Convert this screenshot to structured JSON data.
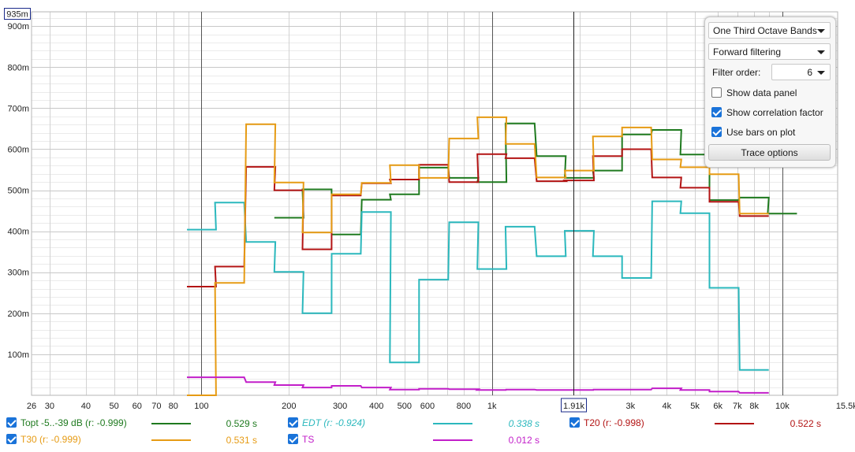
{
  "chart_data": {
    "type": "line",
    "step": true,
    "x_scale": "log",
    "xlim": [
      26,
      15500
    ],
    "ylim": [
      0,
      935
    ],
    "x_unit": "Hz",
    "y_tick_labels": [
      "900m",
      "800m",
      "700m",
      "600m",
      "500m",
      "400m",
      "300m",
      "200m",
      "100m"
    ],
    "y_ticks": [
      900,
      800,
      700,
      600,
      500,
      400,
      300,
      200,
      100
    ],
    "x_tick_labels": [
      "26",
      "30",
      "40",
      "50",
      "60",
      "70",
      "80",
      "100",
      "200",
      "300",
      "400",
      "500",
      "600",
      "800",
      "1k",
      "2k",
      "3k",
      "4k",
      "5k",
      "6k",
      "7k",
      "8k",
      "10k",
      "15.5kHz"
    ],
    "x_ticks": [
      26,
      30,
      40,
      50,
      60,
      70,
      80,
      100,
      200,
      300,
      400,
      500,
      600,
      800,
      1000,
      2000,
      3000,
      4000,
      5000,
      6000,
      7000,
      8000,
      10000,
      15500
    ],
    "y_max_label": "935m",
    "cursor": {
      "x": 1910,
      "label": "1.91k"
    },
    "bands": [
      100,
      125,
      160,
      200,
      250,
      315,
      400,
      500,
      630,
      800,
      1000,
      1250,
      1600,
      2000,
      2500,
      3150,
      4000,
      5000,
      6300,
      8000,
      10000
    ],
    "series": [
      {
        "name": "Topt -5..-39 dB (r: -0.999)",
        "color": "#1f7a1f",
        "values": [
          null,
          null,
          null,
          433,
          502,
          392,
          477,
          490,
          555,
          530,
          520,
          663,
          583,
          530,
          548,
          636,
          647,
          587,
          476,
          482,
          443
        ]
      },
      {
        "name": "EDT (r: -0.924)",
        "color": "#2bb8bd",
        "values": [
          404,
          470,
          374,
          301,
          200,
          345,
          447,
          80,
          282,
          422,
          308,
          411,
          339,
          401,
          339,
          286,
          473,
          444,
          262,
          62,
          null
        ]
      },
      {
        "name": "T20 (r: -0.998)",
        "color": "#b31414",
        "values": [
          265,
          314,
          557,
          500,
          356,
          487,
          517,
          526,
          562,
          520,
          588,
          578,
          522,
          524,
          583,
          600,
          531,
          506,
          472,
          437,
          null
        ]
      },
      {
        "name": "T30 (r: -0.999)",
        "color": "#e69b14",
        "values": [
          0,
          274,
          661,
          519,
          397,
          490,
          518,
          561,
          530,
          626,
          678,
          613,
          531,
          548,
          631,
          653,
          575,
          556,
          539,
          443,
          null
        ]
      },
      {
        "name": "TS",
        "color": "#c21ec9",
        "values": [
          44,
          44,
          32,
          25,
          19,
          23,
          19,
          14,
          16,
          15,
          13,
          14,
          13,
          13,
          14,
          14,
          17,
          13,
          9,
          6,
          null
        ]
      }
    ]
  },
  "panel": {
    "bands_mode": "One Third Octave Bands",
    "filtering": "Forward filtering",
    "filter_order_label": "Filter order:",
    "filter_order_value": "6",
    "show_data_panel": "Show data panel",
    "show_correlation": "Show correlation factor",
    "use_bars": "Use bars on plot",
    "trace_options": "Trace options"
  },
  "legend": {
    "items": [
      {
        "label": "Topt -5..-39 dB (r: -0.999)",
        "value": "0.529 s",
        "color": "#1f7a1f"
      },
      {
        "label": "EDT (r: -0.924)",
        "value": "0.338 s",
        "color": "#2bb8bd"
      },
      {
        "label": "T20 (r: -0.998)",
        "value": "0.522 s",
        "color": "#b31414"
      },
      {
        "label": "T30 (r: -0.999)",
        "value": "0.531 s",
        "color": "#e69b14"
      },
      {
        "label": "TS",
        "value": "0.012 s",
        "color": "#c21ec9"
      }
    ]
  }
}
